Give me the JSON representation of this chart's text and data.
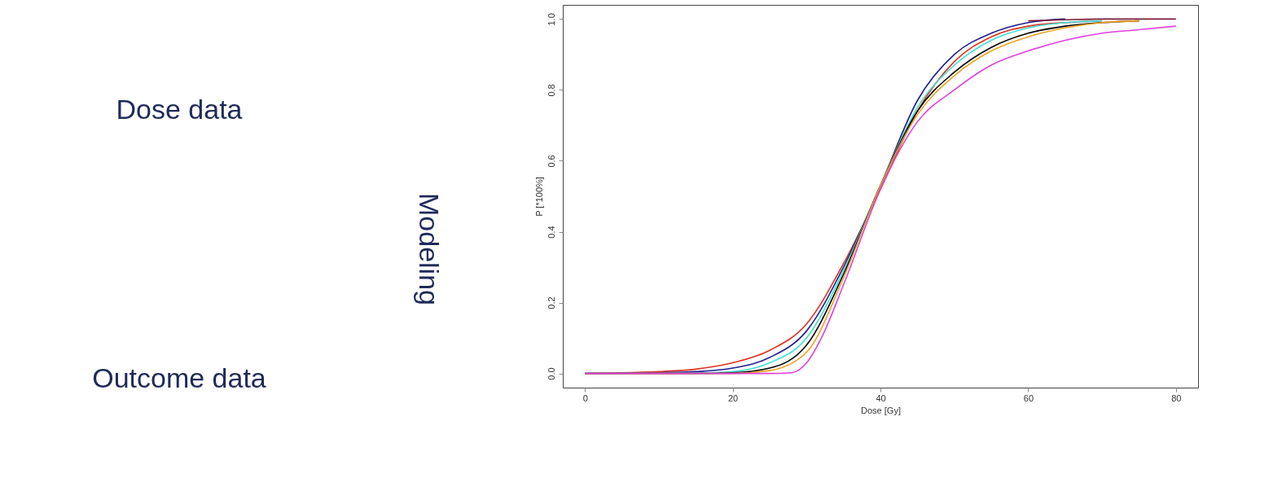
{
  "chart_data": {
    "type": "line",
    "xlabel": "Dose [Gy]",
    "ylabel": "P [*100%]",
    "annotations": [
      "Dose data",
      "Outcome data",
      "Modeling"
    ],
    "xlim": [
      -3,
      83
    ],
    "ylim": [
      -0.04,
      1.04
    ],
    "xticks": [
      0,
      20,
      40,
      60,
      80
    ],
    "yticks": [
      {
        "value": 0,
        "label": "0.0"
      },
      0.2,
      0.4,
      0.6,
      0.8,
      {
        "value": 1,
        "label": "1.0"
      }
    ],
    "grid": false,
    "legend": false,
    "marker": "none",
    "line_style": "solid",
    "series": [
      {
        "color": "#e03020",
        "x": [
          0,
          10,
          15,
          20,
          25,
          30,
          35,
          40,
          45,
          50,
          55,
          60,
          65,
          70
        ],
        "values": [
          0,
          0.005,
          0.012,
          0.03,
          0.065,
          0.14,
          0.31,
          0.52,
          0.74,
          0.88,
          0.95,
          0.98,
          0.99,
          0.995
        ]
      },
      {
        "color": "#1f1f8f",
        "x": [
          0,
          10,
          15,
          20,
          25,
          30,
          35,
          40,
          45,
          50,
          55,
          60,
          65
        ],
        "values": [
          0,
          0.002,
          0.005,
          0.015,
          0.045,
          0.12,
          0.3,
          0.53,
          0.77,
          0.9,
          0.96,
          0.99,
          1.0
        ]
      },
      {
        "color": "#40e0d0",
        "x": [
          0,
          15,
          20,
          25,
          30,
          35,
          40,
          45,
          50,
          55,
          60,
          65,
          70
        ],
        "values": [
          0,
          0.001,
          0.005,
          0.03,
          0.1,
          0.29,
          0.53,
          0.75,
          0.87,
          0.94,
          0.975,
          0.99,
          0.995
        ]
      },
      {
        "color": "#000000",
        "x": [
          0,
          15,
          20,
          25,
          30,
          35,
          40,
          45,
          50,
          55,
          60,
          65,
          70,
          75
        ],
        "values": [
          0,
          0,
          0.002,
          0.015,
          0.08,
          0.28,
          0.53,
          0.74,
          0.85,
          0.92,
          0.96,
          0.98,
          0.99,
          0.995
        ]
      },
      {
        "color": "#f0a020",
        "x": [
          0,
          20,
          25,
          30,
          35,
          40,
          45,
          50,
          55,
          60,
          65,
          70,
          75
        ],
        "values": [
          0,
          0,
          0.008,
          0.06,
          0.27,
          0.53,
          0.73,
          0.84,
          0.91,
          0.95,
          0.975,
          0.99,
          0.995
        ]
      },
      {
        "color": "#e040e0",
        "x": [
          0,
          20,
          25,
          28,
          30,
          32,
          35,
          40,
          45,
          50,
          55,
          60,
          65,
          70,
          75,
          80
        ],
        "values": [
          0,
          0,
          0,
          0.002,
          0.03,
          0.1,
          0.25,
          0.52,
          0.71,
          0.8,
          0.87,
          0.91,
          0.94,
          0.96,
          0.97,
          0.98
        ]
      },
      {
        "color": "#7a1a3a",
        "x": [
          60,
          65,
          70,
          75,
          80
        ],
        "values": [
          0.995,
          0.998,
          1.0,
          1.0,
          1.0
        ]
      }
    ]
  }
}
